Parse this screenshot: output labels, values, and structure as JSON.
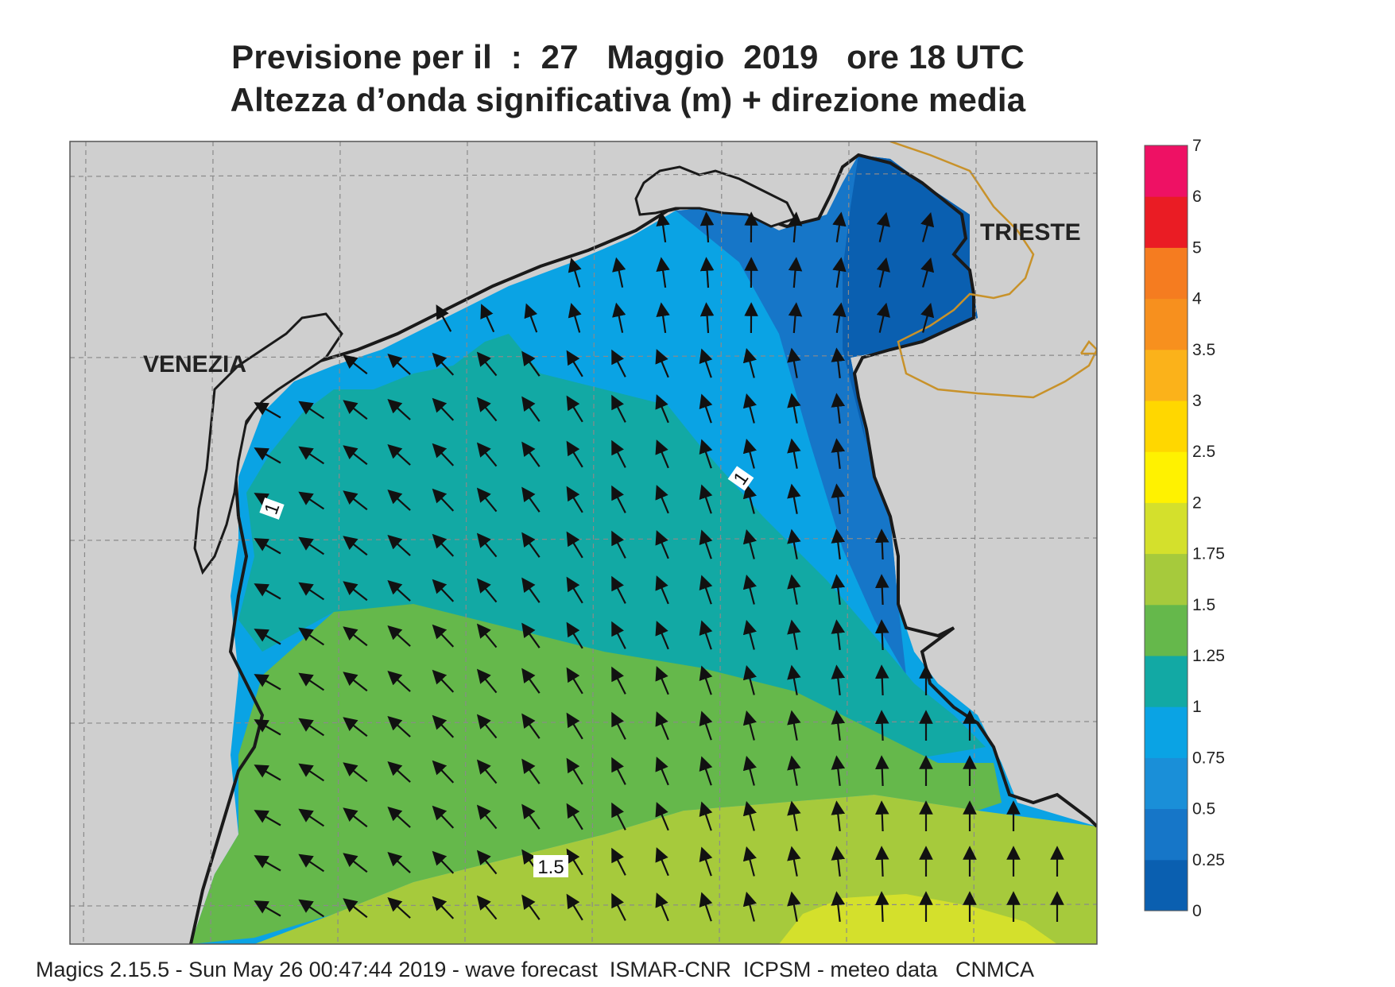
{
  "title_line1": "Previsione per il  :  27   Maggio  2019   ore 18 UTC",
  "title_line2": "Altezza d’onda significativa (m) + direzione media",
  "city_labels": {
    "venezia": "VENEZIA",
    "trieste": "TRIESTE"
  },
  "contour_labels": [
    "1",
    "1",
    "1.5"
  ],
  "legend": {
    "labels": [
      "0",
      "0.25",
      "0.5",
      "0.75",
      "1",
      "1.25",
      "1.5",
      "1.75",
      "2",
      "2.5",
      "3",
      "3.5",
      "4",
      "5",
      "6",
      "7"
    ],
    "colors": [
      "#0a5fb0",
      "#1676c8",
      "#1a8fd8",
      "#0aa3e4",
      "#12a9a4",
      "#65b84b",
      "#a6ca3c",
      "#d4e02c",
      "#fff200",
      "#ffd700",
      "#fbb21a",
      "#f7901e",
      "#f57c20",
      "#ea1c24",
      "#ee1164"
    ]
  },
  "colors": {
    "land": "#cfcfcf",
    "coast": "#1a1a1a",
    "border": "#c8922a",
    "arrow": "#111111",
    "grid": "#8a8a8a"
  },
  "arrows": {
    "direction": "north-northwest"
  },
  "footer": "Magics 2.15.5 - Sun May 26 00:47:44 2019 - wave forecast  ISMAR-CNR  ICPSM - meteo data   CNMCA"
}
